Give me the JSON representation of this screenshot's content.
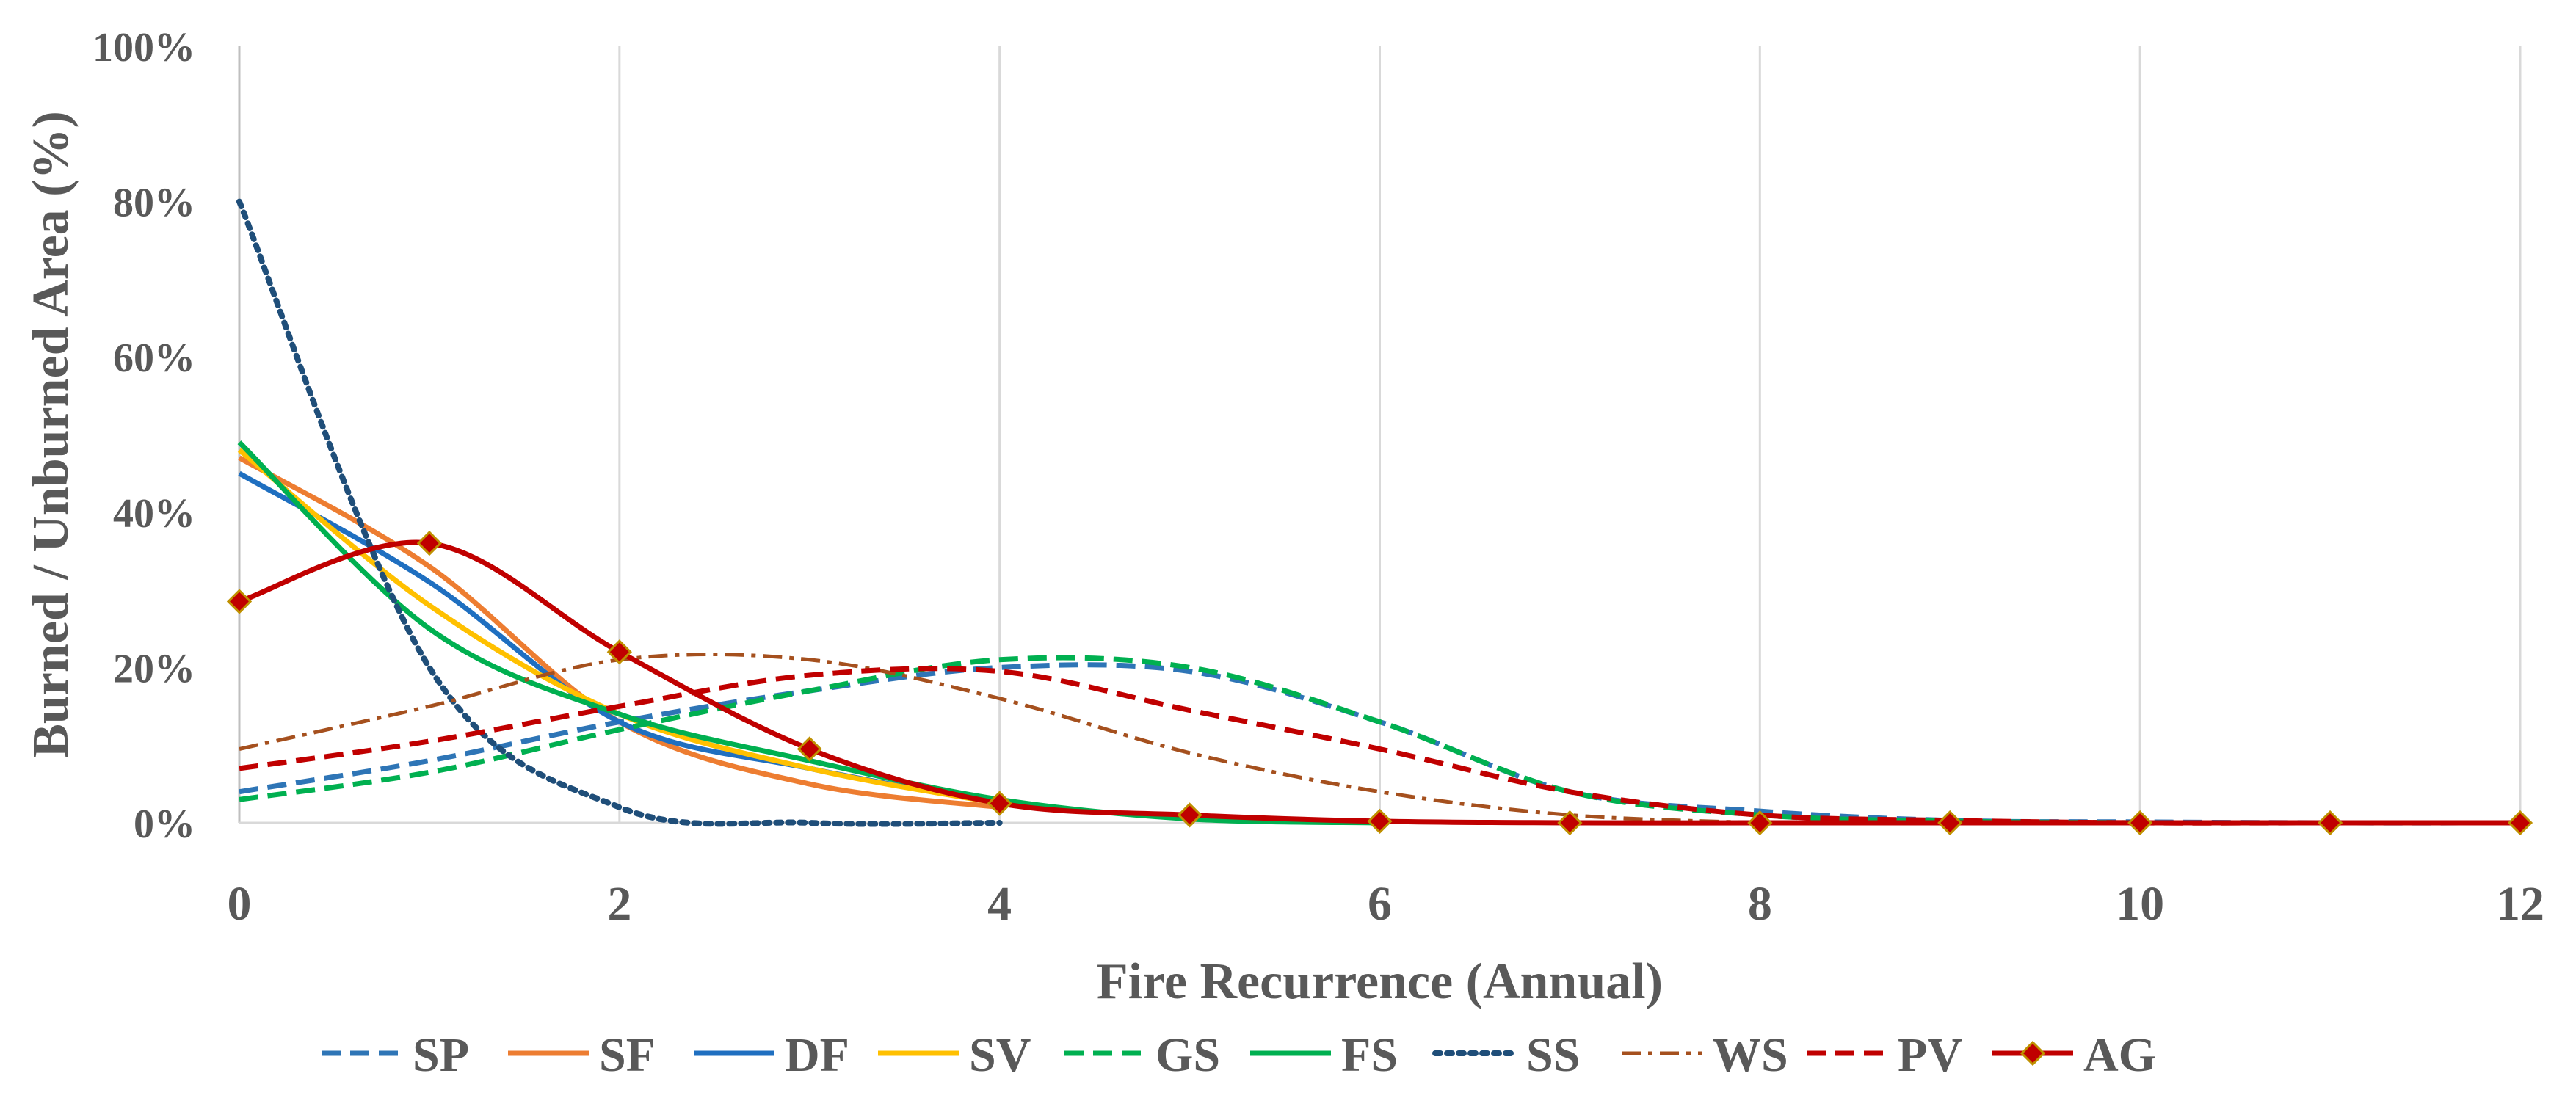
{
  "chart_data": {
    "type": "line",
    "xlabel": "Fire Recurrence (Annual)",
    "ylabel": "Burned / Unburned Area (%)",
    "xlim": [
      0,
      12
    ],
    "ylim": [
      0,
      100
    ],
    "x_ticks": [
      "0",
      "2",
      "4",
      "6",
      "8",
      "10",
      "12"
    ],
    "y_ticks": [
      "0%",
      "20%",
      "40%",
      "60%",
      "80%",
      "100%"
    ],
    "grid": "vertical",
    "legend_position": "bottom",
    "series": [
      {
        "name": "SP",
        "color": "#2E75B6",
        "dash": "dashed",
        "x": [
          0,
          1,
          2,
          3,
          4,
          5,
          6,
          7,
          8,
          9,
          10,
          11,
          12
        ],
        "values": [
          4,
          8,
          13,
          17,
          20,
          19.5,
          13,
          4,
          1.5,
          0.3,
          0.1,
          0,
          0
        ]
      },
      {
        "name": "SF",
        "color": "#ED7D31",
        "dash": "solid",
        "x": [
          0,
          1,
          2,
          3,
          4
        ],
        "values": [
          47,
          33,
          13,
          5,
          2
        ]
      },
      {
        "name": "DF",
        "color": "#1F6FC0",
        "dash": "solid",
        "x": [
          0,
          1,
          2,
          3,
          4
        ],
        "values": [
          45,
          31,
          13,
          7,
          2.5
        ]
      },
      {
        "name": "SV",
        "color": "#FFC000",
        "dash": "solid",
        "x": [
          0,
          1,
          2,
          3,
          4
        ],
        "values": [
          48,
          28,
          14,
          7,
          2.5
        ]
      },
      {
        "name": "GS",
        "color": "#00B050",
        "dash": "dashed",
        "x": [
          0,
          1,
          2,
          3,
          4,
          5,
          6,
          7,
          8,
          9,
          10
        ],
        "values": [
          3,
          6.5,
          12,
          17,
          21,
          20,
          13,
          4,
          1,
          0.2,
          0
        ]
      },
      {
        "name": "FS",
        "color": "#00B050",
        "dash": "solid",
        "x": [
          0,
          1,
          2,
          3,
          4,
          5,
          6
        ],
        "values": [
          49,
          25,
          14,
          8,
          3,
          0.5,
          0
        ]
      },
      {
        "name": "SS",
        "color": "#1F4E79",
        "dash": "dotted",
        "x": [
          0,
          1,
          2,
          3,
          4
        ],
        "values": [
          80,
          20,
          2,
          0,
          0
        ]
      },
      {
        "name": "WS",
        "color": "#A5501E",
        "dash": "dashdot",
        "x": [
          0,
          1,
          2,
          3,
          4,
          5,
          6,
          7,
          8
        ],
        "values": [
          9.5,
          15,
          21,
          21,
          16,
          9,
          4,
          1,
          0
        ]
      },
      {
        "name": "PV",
        "color": "#C00000",
        "dash": "dashed",
        "x": [
          0,
          1,
          2,
          3,
          4,
          5,
          6,
          7,
          8,
          9,
          10,
          11,
          12
        ],
        "values": [
          7,
          10.5,
          15,
          19,
          19.5,
          14.5,
          9.5,
          4,
          1,
          0.3,
          0,
          0,
          0
        ]
      },
      {
        "name": "AG",
        "color": "#C00000",
        "dash": "solid",
        "marker": "diamond",
        "x": [
          0,
          1,
          2,
          3,
          4,
          5,
          6,
          7,
          8,
          9,
          10,
          11,
          12
        ],
        "values": [
          28.5,
          36,
          22,
          9.5,
          2.5,
          1,
          0.2,
          0,
          0,
          0,
          0,
          0,
          0
        ]
      }
    ]
  }
}
